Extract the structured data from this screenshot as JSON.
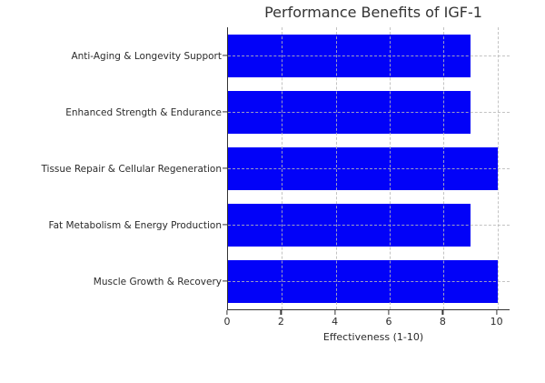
{
  "chart_data": {
    "type": "bar",
    "orientation": "horizontal",
    "title": "Performance Benefits of IGF-1",
    "xlabel": "Effectiveness (1-10)",
    "ylabel": "",
    "categories": [
      "Anti-Aging & Longevity Support",
      "Enhanced Strength & Endurance",
      "Tissue Repair & Cellular Regeneration",
      "Fat Metabolism & Energy Production",
      "Muscle Growth & Recovery"
    ],
    "values": [
      9,
      9,
      10,
      9,
      10
    ],
    "xticks": [
      0,
      2,
      4,
      6,
      8,
      10
    ],
    "xtick_labels": [
      "0",
      "2",
      "4",
      "6",
      "8",
      "10"
    ],
    "xlim": [
      0,
      10.45
    ],
    "bar_color": "#0202f8",
    "grid": true,
    "grid_style": "dashed",
    "grid_color": "#b9b9b9",
    "background_color": "#ffffff",
    "text_color": "#2b2b2b",
    "legend": null
  }
}
